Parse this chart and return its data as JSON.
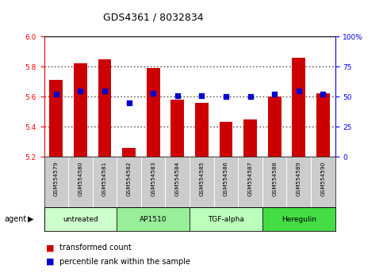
{
  "title": "GDS4361 / 8032834",
  "samples": [
    "GSM554579",
    "GSM554580",
    "GSM554581",
    "GSM554582",
    "GSM554583",
    "GSM554584",
    "GSM554585",
    "GSM554586",
    "GSM554587",
    "GSM554588",
    "GSM554589",
    "GSM554590"
  ],
  "bar_values": [
    5.71,
    5.82,
    5.85,
    5.26,
    5.79,
    5.58,
    5.56,
    5.43,
    5.45,
    5.6,
    5.86,
    5.62
  ],
  "percentile_values": [
    52,
    55,
    55,
    45,
    53,
    51,
    51,
    50,
    50,
    52,
    55,
    52
  ],
  "bar_bottom": 5.2,
  "y_left_min": 5.2,
  "y_left_max": 6.0,
  "y_right_min": 0,
  "y_right_max": 100,
  "y_left_ticks": [
    5.2,
    5.4,
    5.6,
    5.8,
    6.0
  ],
  "y_right_ticks": [
    0,
    25,
    50,
    75,
    100
  ],
  "y_right_tick_labels": [
    "0",
    "25",
    "50",
    "75",
    "100%"
  ],
  "bar_color": "#cc0000",
  "percentile_color": "#0000cc",
  "agents": [
    {
      "label": "untreated",
      "start": 0,
      "end": 3,
      "color": "#ccffcc"
    },
    {
      "label": "AP1510",
      "start": 3,
      "end": 6,
      "color": "#99ee99"
    },
    {
      "label": "TGF-alpha",
      "start": 6,
      "end": 9,
      "color": "#bbffbb"
    },
    {
      "label": "Heregulin",
      "start": 9,
      "end": 12,
      "color": "#44dd44"
    }
  ],
  "agent_label": "agent",
  "legend_bar_label": "transformed count",
  "legend_pct_label": "percentile rank within the sample",
  "background_color": "#ffffff",
  "label_bg_color": "#cccccc",
  "xlim_left": -0.5,
  "xlim_right": 11.5
}
